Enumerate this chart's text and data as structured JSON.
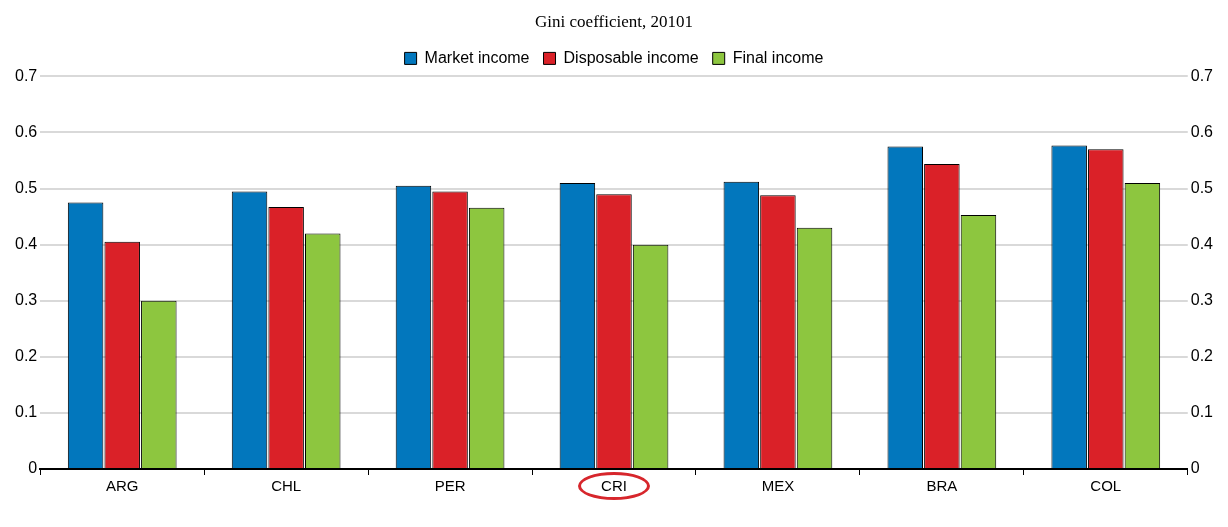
{
  "chart_data": {
    "type": "bar",
    "title": "Gini coefficient, 20101",
    "categories": [
      "ARG",
      "CHL",
      "PER",
      "CRI",
      "MEX",
      "BRA",
      "COL"
    ],
    "series": [
      {
        "name": "Market income",
        "color": "#0277bd",
        "values": [
          0.475,
          0.495,
          0.505,
          0.51,
          0.512,
          0.575,
          0.577
        ]
      },
      {
        "name": "Disposable income",
        "color": "#da2128",
        "values": [
          0.405,
          0.467,
          0.495,
          0.49,
          0.488,
          0.544,
          0.57
        ]
      },
      {
        "name": "Final income",
        "color": "#8dc63f",
        "values": [
          0.3,
          0.42,
          0.466,
          0.4,
          0.43,
          0.453,
          0.51
        ]
      }
    ],
    "ylim": [
      0,
      0.7
    ],
    "yticks": [
      0,
      0.1,
      0.2,
      0.3,
      0.4,
      0.5,
      0.6,
      0.7
    ],
    "y2lim": [
      0,
      0.7
    ],
    "y2ticks": [
      0,
      0.1,
      0.2,
      0.3,
      0.4,
      0.5,
      0.6,
      0.7
    ],
    "grid": "y",
    "legend": "top"
  }
}
